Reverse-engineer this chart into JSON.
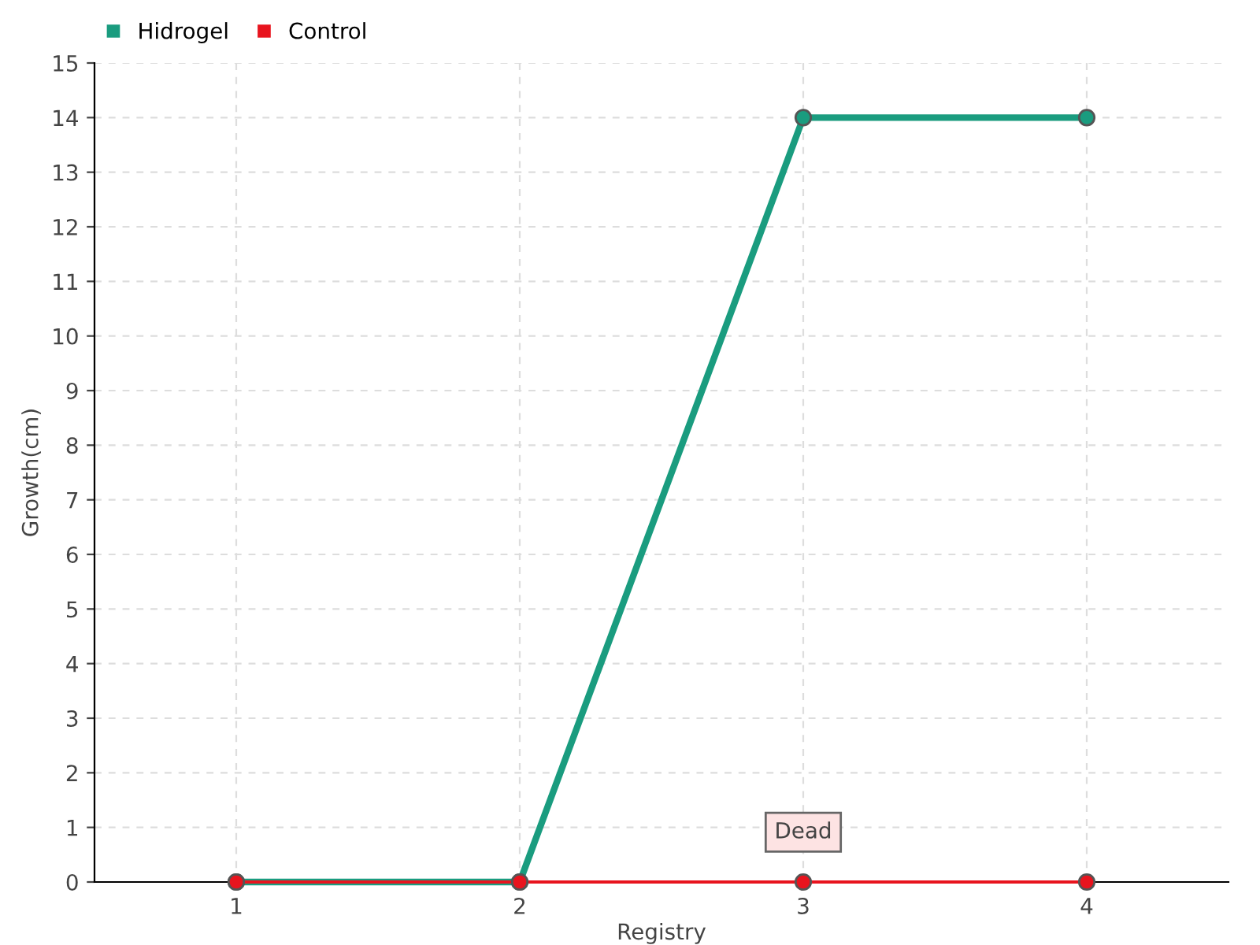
{
  "chart_data": {
    "type": "line",
    "xlabel": "Registry",
    "ylabel": "Growth(cm)",
    "categories": [
      "1",
      "2",
      "3",
      "4"
    ],
    "series": [
      {
        "name": "Hidrogel",
        "color": "#1a9c7f",
        "values": [
          0,
          0,
          14,
          14
        ]
      },
      {
        "name": "Control",
        "color": "#e8141e",
        "values": [
          0,
          0,
          0,
          0
        ]
      }
    ],
    "annotations": [
      {
        "text": "Dead",
        "x": "3",
        "y": 0
      }
    ],
    "ylim": [
      0,
      15
    ],
    "yticks": [
      0,
      1,
      2,
      3,
      4,
      5,
      6,
      7,
      8,
      9,
      10,
      11,
      12,
      13,
      14,
      15
    ],
    "grid": true,
    "legend": "top left",
    "marker": "circle",
    "line_style": "solid"
  }
}
